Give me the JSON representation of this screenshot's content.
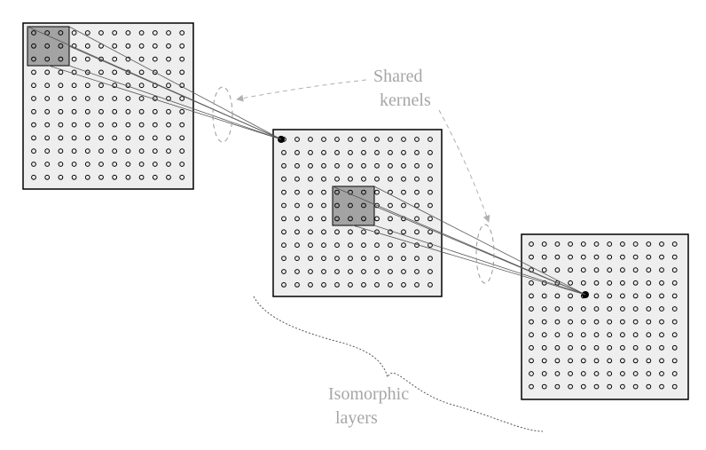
{
  "labels": {
    "shared_kernels_line1": "Shared",
    "shared_kernels_line2": "kernels",
    "isomorphic_line1": "Isomorphic",
    "isomorphic_line2": "layers"
  },
  "layers": [
    {
      "name": "input-layer",
      "rows": 12,
      "cols": 12
    },
    {
      "name": "middle-layer",
      "rows": 12,
      "cols": 12
    },
    {
      "name": "output-layer",
      "rows": 12,
      "cols": 12
    }
  ],
  "kernel": {
    "rows": 3,
    "cols": 3
  },
  "colors": {
    "layer_fill": "#eeeeee",
    "kernel_fill": "#a3a3a3",
    "label": "#a6a6a6",
    "arrow": "#b0b0b0",
    "neuron": "#000000"
  }
}
